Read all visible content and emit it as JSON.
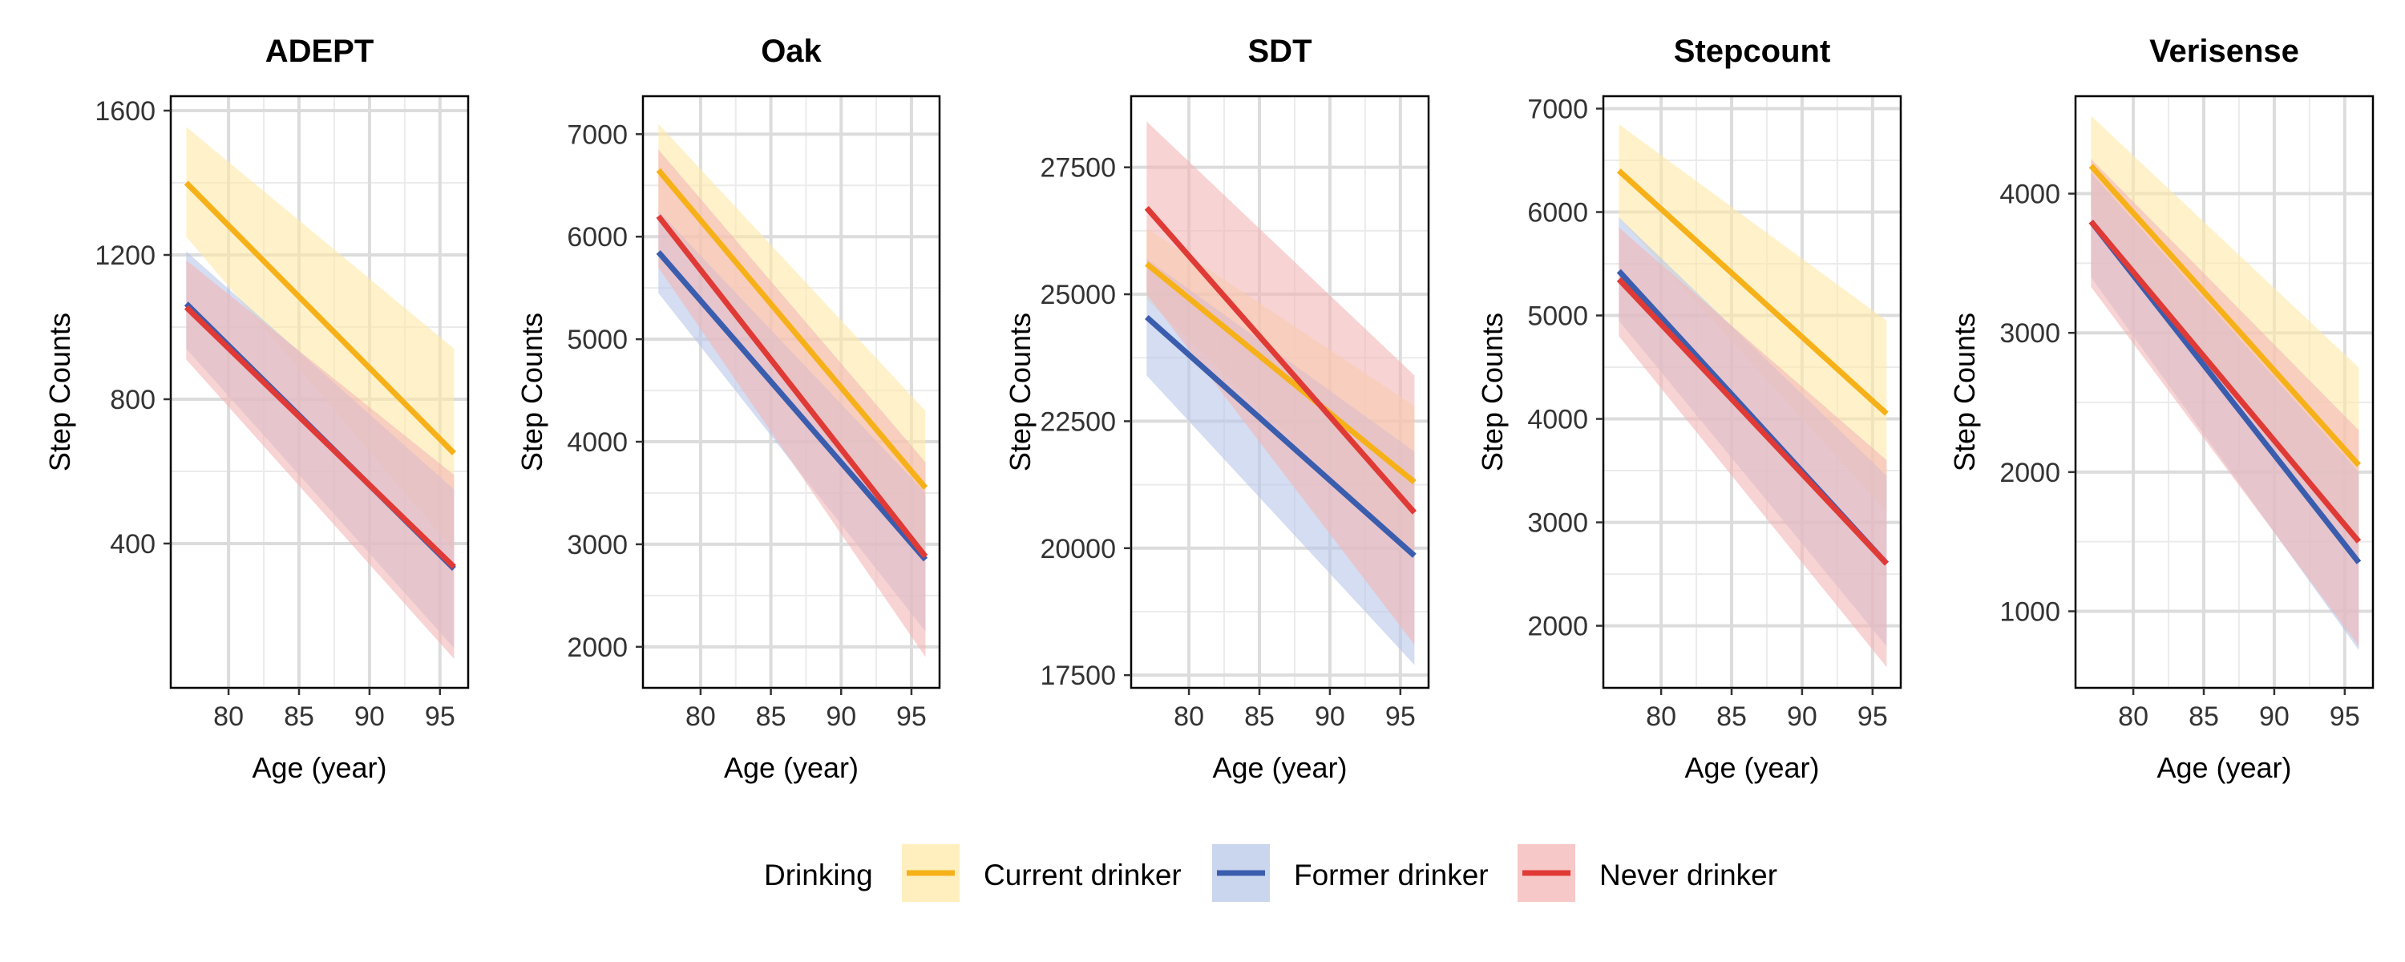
{
  "chart_data": {
    "type": "line",
    "facet_variable": "",
    "xlabel": "Age (year)",
    "ylabel": "Step Counts",
    "grid": true,
    "legend": {
      "title": "Drinking",
      "position": "bottom",
      "items": [
        {
          "name": "Current drinker",
          "color": "#F6B119"
        },
        {
          "name": "Former drinker",
          "color": "#3A5DAE"
        },
        {
          "name": "Never drinker",
          "color": "#E03A36"
        }
      ]
    },
    "series_styles": {
      "Current drinker": {
        "color": "#F6B119",
        "band": "#FFE9A8"
      },
      "Former drinker": {
        "color": "#3A5DAE",
        "band": "#B8C7E8"
      },
      "Never drinker": {
        "color": "#E03A36",
        "band": "#F4B6B6"
      }
    },
    "panels": [
      {
        "title": "ADEPT",
        "xlim": [
          75.9,
          97.0
        ],
        "xticks": [
          80,
          85,
          90,
          95
        ],
        "ylim": [
          0,
          1640
        ],
        "yticks": [
          400,
          800,
          1200,
          1600
        ],
        "series": [
          {
            "name": "Current drinker",
            "x": [
              77,
              96
            ],
            "y": [
              1400,
              650
            ],
            "lower": [
              1250,
              380
            ],
            "upper": [
              1555,
              940
            ]
          },
          {
            "name": "Former drinker",
            "x": [
              77,
              96
            ],
            "y": [
              1065,
              330
            ],
            "lower": [
              940,
              110
            ],
            "upper": [
              1210,
              550
            ]
          },
          {
            "name": "Never drinker",
            "x": [
              77,
              96
            ],
            "y": [
              1055,
              335
            ],
            "lower": [
              910,
              80
            ],
            "upper": [
              1185,
              590
            ]
          }
        ]
      },
      {
        "title": "Oak",
        "xlim": [
          75.9,
          97.0
        ],
        "xticks": [
          80,
          85,
          90,
          95
        ],
        "ylim": [
          1600,
          7370
        ],
        "yticks": [
          2000,
          3000,
          4000,
          5000,
          6000,
          7000
        ],
        "series": [
          {
            "name": "Current drinker",
            "x": [
              77,
              96
            ],
            "y": [
              6650,
              3550
            ],
            "lower": [
              6250,
              2900
            ],
            "upper": [
              7100,
              4300
            ]
          },
          {
            "name": "Former drinker",
            "x": [
              77,
              96
            ],
            "y": [
              5850,
              2850
            ],
            "lower": [
              5450,
              2150
            ],
            "upper": [
              6250,
              3500
            ]
          },
          {
            "name": "Never drinker",
            "x": [
              77,
              96
            ],
            "y": [
              6200,
              2880
            ],
            "lower": [
              5700,
              1900
            ],
            "upper": [
              6850,
              3800
            ]
          }
        ]
      },
      {
        "title": "SDT",
        "xlim": [
          75.9,
          97.0
        ],
        "xticks": [
          80,
          85,
          90,
          95
        ],
        "ylim": [
          17250,
          28900
        ],
        "yticks": [
          17500,
          20000,
          22500,
          25000,
          27500
        ],
        "series": [
          {
            "name": "Current drinker",
            "x": [
              77,
              96
            ],
            "y": [
              25600,
              21300
            ],
            "lower": [
              24900,
              19800
            ],
            "upper": [
              26300,
              22800
            ]
          },
          {
            "name": "Former drinker",
            "x": [
              77,
              96
            ],
            "y": [
              24550,
              19850
            ],
            "lower": [
              23400,
              17700
            ],
            "upper": [
              25700,
              21900
            ]
          },
          {
            "name": "Never drinker",
            "x": [
              77,
              96
            ],
            "y": [
              26700,
              20700
            ],
            "lower": [
              25000,
              18100
            ],
            "upper": [
              28400,
              23400
            ]
          }
        ]
      },
      {
        "title": "Stepcount",
        "xlim": [
          75.9,
          97.0
        ],
        "xticks": [
          80,
          85,
          90,
          95
        ],
        "ylim": [
          1400,
          7120
        ],
        "yticks": [
          2000,
          3000,
          4000,
          5000,
          6000,
          7000
        ],
        "series": [
          {
            "name": "Current drinker",
            "x": [
              77,
              96
            ],
            "y": [
              6400,
              4050
            ],
            "lower": [
              5950,
              3100
            ],
            "upper": [
              6850,
              4950
            ]
          },
          {
            "name": "Former drinker",
            "x": [
              77,
              96
            ],
            "y": [
              5430,
              2600
            ],
            "lower": [
              4950,
              1800
            ],
            "upper": [
              5950,
              3450
            ]
          },
          {
            "name": "Never drinker",
            "x": [
              77,
              96
            ],
            "y": [
              5350,
              2600
            ],
            "lower": [
              4800,
              1600
            ],
            "upper": [
              5850,
              3600
            ]
          }
        ]
      },
      {
        "title": "Verisense",
        "xlim": [
          75.9,
          97.0
        ],
        "xticks": [
          80,
          85,
          90,
          95
        ],
        "ylim": [
          450,
          4700
        ],
        "yticks": [
          1000,
          2000,
          3000,
          4000
        ],
        "series": [
          {
            "name": "Current drinker",
            "x": [
              77,
              96
            ],
            "y": [
              4200,
              2050
            ],
            "lower": [
              3850,
              1450
            ],
            "upper": [
              4560,
              2750
            ]
          },
          {
            "name": "Former drinker",
            "x": [
              77,
              96
            ],
            "y": [
              3800,
              1350
            ],
            "lower": [
              3400,
              720
            ],
            "upper": [
              4150,
              2000
            ]
          },
          {
            "name": "Never drinker",
            "x": [
              77,
              96
            ],
            "y": [
              3800,
              1500
            ],
            "lower": [
              3330,
              750
            ],
            "upper": [
              4250,
              2300
            ]
          }
        ]
      }
    ]
  }
}
